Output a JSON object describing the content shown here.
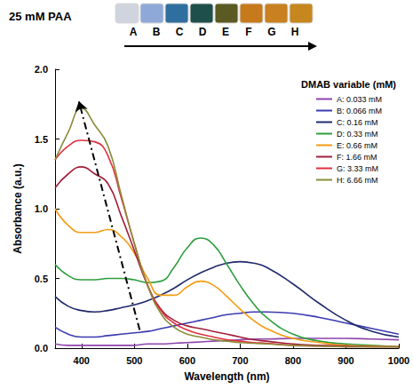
{
  "chart_data": {
    "type": "line",
    "xlabel": "Wavelength (nm)",
    "ylabel": "Absorbance (a.u.)",
    "legend": "upper right",
    "legend_title": "DMAB variable (mM)",
    "inset": {
      "text": "25 mM PAA",
      "labels": [
        "A",
        "B",
        "C",
        "D",
        "E",
        "F",
        "G",
        "H"
      ],
      "colors": [
        "#cfd4de",
        "#8ea8d8",
        "#2f6f9f",
        "#1f4f4a",
        "#5b5a22",
        "#c77a1c",
        "#c9801f",
        "#c6871f"
      ]
    },
    "arrow": {
      "x": [
        510,
        395
      ],
      "y": [
        0.13,
        1.77
      ],
      "line_style": "dashdot"
    },
    "xlim": [
      350,
      1000
    ],
    "xticks": [
      400,
      500,
      600,
      700,
      800,
      900,
      1000
    ],
    "ylim": [
      0,
      2.0
    ],
    "yticks": [
      {
        "value": 0,
        "label": "0.0"
      },
      {
        "value": 0.5,
        "label": "0.5"
      },
      {
        "value": 1.0,
        "label": "1.0"
      },
      {
        "value": 1.5,
        "label": "1.5"
      },
      {
        "value": 2.0,
        "label": "2.0"
      }
    ],
    "grid": false,
    "x": [
      350,
      375,
      400,
      425,
      450,
      475,
      500,
      525,
      550,
      575,
      600,
      625,
      650,
      675,
      700,
      725,
      750,
      800,
      850,
      900,
      950,
      1000
    ],
    "series": [
      {
        "name": "A: 0.033 mM",
        "color": "#8e44ad",
        "values": [
          0.03,
          0.02,
          0.02,
          0.02,
          0.02,
          0.02,
          0.02,
          0.03,
          0.03,
          0.035,
          0.04,
          0.045,
          0.05,
          0.055,
          0.06,
          0.065,
          0.065,
          0.07,
          0.07,
          0.07,
          0.065,
          0.06
        ]
      },
      {
        "name": "B: 0.066 mM",
        "color": "#3b3bb0",
        "values": [
          0.15,
          0.1,
          0.08,
          0.08,
          0.09,
          0.1,
          0.11,
          0.12,
          0.14,
          0.16,
          0.18,
          0.2,
          0.22,
          0.24,
          0.25,
          0.26,
          0.26,
          0.25,
          0.22,
          0.18,
          0.14,
          0.1
        ]
      },
      {
        "name": "C: 0.16 mM",
        "color": "#1f2a6b",
        "values": [
          0.37,
          0.3,
          0.27,
          0.26,
          0.27,
          0.29,
          0.31,
          0.34,
          0.38,
          0.43,
          0.49,
          0.54,
          0.58,
          0.61,
          0.62,
          0.61,
          0.58,
          0.46,
          0.32,
          0.2,
          0.12,
          0.08
        ]
      },
      {
        "name": "D: 0.33 mM",
        "color": "#2e9e3e",
        "values": [
          0.6,
          0.52,
          0.49,
          0.49,
          0.5,
          0.5,
          0.49,
          0.47,
          0.48,
          0.58,
          0.72,
          0.79,
          0.74,
          0.6,
          0.45,
          0.32,
          0.22,
          0.1,
          0.05,
          0.03,
          0.02,
          0.01
        ]
      },
      {
        "name": "E: 0.66 mM",
        "color": "#f39c12",
        "values": [
          1.0,
          0.88,
          0.83,
          0.83,
          0.85,
          0.8,
          0.68,
          0.5,
          0.38,
          0.38,
          0.44,
          0.48,
          0.45,
          0.37,
          0.28,
          0.2,
          0.14,
          0.07,
          0.04,
          0.02,
          0.015,
          0.01
        ]
      },
      {
        "name": "F: 1.66 mM",
        "color": "#a0203a",
        "values": [
          1.15,
          1.25,
          1.3,
          1.25,
          1.18,
          0.95,
          0.7,
          0.45,
          0.28,
          0.2,
          0.16,
          0.14,
          0.12,
          0.1,
          0.08,
          0.06,
          0.05,
          0.03,
          0.02,
          0.015,
          0.01,
          0.01
        ]
      },
      {
        "name": "G: 3.33 mM",
        "color": "#e0303f",
        "values": [
          1.35,
          1.45,
          1.49,
          1.48,
          1.38,
          1.08,
          0.75,
          0.45,
          0.27,
          0.18,
          0.13,
          0.1,
          0.08,
          0.06,
          0.05,
          0.04,
          0.035,
          0.02,
          0.015,
          0.01,
          0.01,
          0.01
        ]
      },
      {
        "name": "H: 6.66 mM",
        "color": "#8b8b3a",
        "values": [
          1.35,
          1.55,
          1.72,
          1.6,
          1.45,
          1.1,
          0.75,
          0.45,
          0.25,
          0.15,
          0.1,
          0.08,
          0.06,
          0.05,
          0.04,
          0.035,
          0.03,
          0.02,
          0.015,
          0.01,
          0.01,
          0.01
        ]
      }
    ]
  }
}
